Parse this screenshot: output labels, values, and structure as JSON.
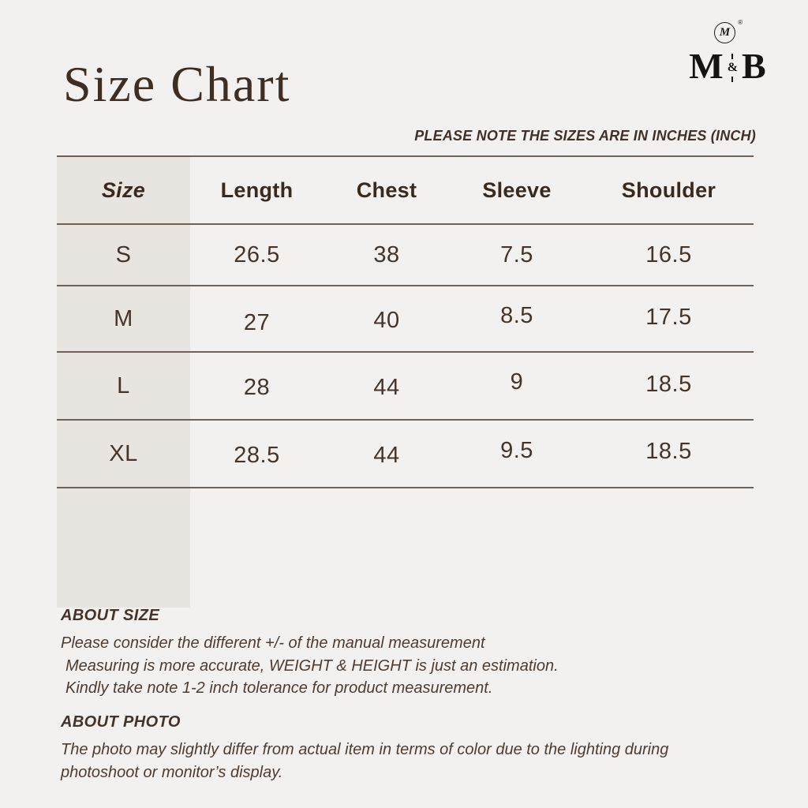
{
  "page": {
    "title": "Size Chart",
    "note": "PLEASE NOTE THE SIZES ARE IN INCHES (INCH)"
  },
  "logo": {
    "monogram": "M",
    "registered": "®",
    "left": "M",
    "ampersand": "&",
    "right": "B"
  },
  "size_table": {
    "unit": "inches",
    "columns": [
      "Size",
      "Length",
      "Chest",
      "Sleeve",
      "Shoulder"
    ],
    "rows": [
      [
        "S",
        "26.5",
        "38",
        "7.5",
        "16.5"
      ],
      [
        "M",
        "27",
        "40",
        "8.5",
        "17.5"
      ],
      [
        "L",
        "28",
        "44",
        "9",
        "18.5"
      ],
      [
        "XL",
        "28.5",
        "44",
        "9.5",
        "18.5"
      ]
    ]
  },
  "about_size": {
    "heading": "ABOUT SIZE",
    "lines": [
      "Please consider the different +/- of the manual measurement",
      "Measuring is more accurate, WEIGHT & HEIGHT is just an estimation.",
      "Kindly take note 1-2 inch tolerance for product measurement."
    ]
  },
  "about_photo": {
    "heading": "ABOUT PHOTO",
    "lines": [
      "The photo may slightly differ from actual item in terms of color due to the lighting during",
      "photoshoot or monitor’s display."
    ]
  },
  "colors": {
    "background": "#f2f1ef",
    "size_column": "#e8e5e0",
    "rule_line": "#6e6158",
    "text_brown": "#3e2d21",
    "logo_black": "#141414"
  }
}
